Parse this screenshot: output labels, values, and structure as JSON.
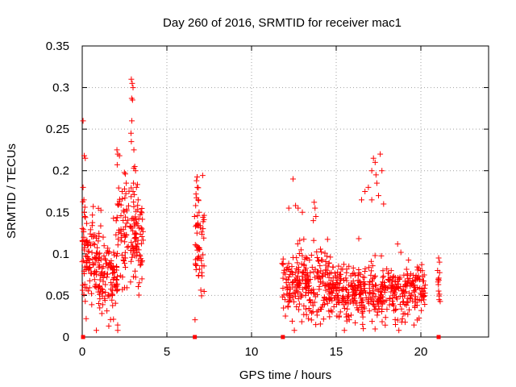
{
  "chart_data": {
    "type": "scatter",
    "title": "Day 260 of 2016, SRMTID for receiver mac1",
    "xlabel": "GPS time / hours",
    "ylabel": "SRMTID / TECUs",
    "xlim": [
      0,
      24
    ],
    "ylim": [
      0,
      0.35
    ],
    "xticks": [
      0,
      5,
      10,
      15,
      20
    ],
    "xtick_labels": [
      "0",
      "5",
      "10",
      "15",
      "20"
    ],
    "yticks": [
      0,
      0.05,
      0.1,
      0.15,
      0.2,
      0.25,
      0.3,
      0.35
    ],
    "ytick_labels": [
      "0",
      "0.05",
      "0.1",
      "0.15",
      "0.2",
      "0.25",
      "0.3",
      "0.35"
    ],
    "grid": true,
    "marker": "+",
    "series_color": "#ff0000",
    "zero_markers_x": [
      0.05,
      6.65,
      11.85,
      21.05
    ],
    "clusters": [
      {
        "x_range": [
          0.0,
          1.0
        ],
        "y_center": 0.095,
        "y_spread": 0.028,
        "count": 110
      },
      {
        "x_range": [
          1.0,
          2.1
        ],
        "y_center": 0.075,
        "y_spread": 0.025,
        "count": 110
      },
      {
        "x_range": [
          2.0,
          3.6
        ],
        "y_center": 0.125,
        "y_spread": 0.03,
        "count": 150
      },
      {
        "x_range": [
          6.6,
          7.2
        ],
        "y_center": 0.11,
        "y_spread": 0.03,
        "count": 55
      },
      {
        "x_range": [
          11.8,
          14.5
        ],
        "y_center": 0.065,
        "y_spread": 0.022,
        "count": 230
      },
      {
        "x_range": [
          14.5,
          17.5
        ],
        "y_center": 0.055,
        "y_spread": 0.018,
        "count": 260
      },
      {
        "x_range": [
          17.5,
          20.3
        ],
        "y_center": 0.055,
        "y_spread": 0.017,
        "count": 220
      },
      {
        "x_range": [
          20.95,
          21.15
        ],
        "y_center": 0.07,
        "y_spread": 0.013,
        "count": 12
      }
    ],
    "points": [
      {
        "x": 0.05,
        "y": 0.26
      },
      {
        "x": 0.12,
        "y": 0.218
      },
      {
        "x": 0.18,
        "y": 0.215
      },
      {
        "x": 0.05,
        "y": 0.18
      },
      {
        "x": 0.1,
        "y": 0.165
      },
      {
        "x": 0.15,
        "y": 0.145
      },
      {
        "x": 0.12,
        "y": 0.15
      },
      {
        "x": 2.05,
        "y": 0.225
      },
      {
        "x": 2.1,
        "y": 0.22
      },
      {
        "x": 2.2,
        "y": 0.218
      },
      {
        "x": 2.5,
        "y": 0.178
      },
      {
        "x": 2.6,
        "y": 0.185
      },
      {
        "x": 2.9,
        "y": 0.31
      },
      {
        "x": 2.95,
        "y": 0.305
      },
      {
        "x": 3.0,
        "y": 0.3
      },
      {
        "x": 2.92,
        "y": 0.287
      },
      {
        "x": 2.97,
        "y": 0.285
      },
      {
        "x": 2.93,
        "y": 0.26
      },
      {
        "x": 2.88,
        "y": 0.245
      },
      {
        "x": 2.9,
        "y": 0.235
      },
      {
        "x": 3.05,
        "y": 0.225
      },
      {
        "x": 3.1,
        "y": 0.205
      },
      {
        "x": 3.15,
        "y": 0.2
      },
      {
        "x": 3.0,
        "y": 0.175
      },
      {
        "x": 3.2,
        "y": 0.18
      },
      {
        "x": 3.3,
        "y": 0.165
      },
      {
        "x": 6.75,
        "y": 0.188
      },
      {
        "x": 6.8,
        "y": 0.18
      },
      {
        "x": 6.72,
        "y": 0.172
      },
      {
        "x": 6.85,
        "y": 0.165
      },
      {
        "x": 6.7,
        "y": 0.158
      },
      {
        "x": 6.9,
        "y": 0.15
      },
      {
        "x": 12.45,
        "y": 0.19
      },
      {
        "x": 12.6,
        "y": 0.158
      },
      {
        "x": 12.75,
        "y": 0.155
      },
      {
        "x": 12.2,
        "y": 0.155
      },
      {
        "x": 13.0,
        "y": 0.15
      },
      {
        "x": 13.7,
        "y": 0.162
      },
      {
        "x": 13.75,
        "y": 0.155
      },
      {
        "x": 13.8,
        "y": 0.145
      },
      {
        "x": 13.65,
        "y": 0.14
      },
      {
        "x": 16.5,
        "y": 0.165
      },
      {
        "x": 16.7,
        "y": 0.175
      },
      {
        "x": 16.9,
        "y": 0.18
      },
      {
        "x": 17.1,
        "y": 0.2
      },
      {
        "x": 17.2,
        "y": 0.215
      },
      {
        "x": 17.3,
        "y": 0.21
      },
      {
        "x": 17.35,
        "y": 0.195
      },
      {
        "x": 17.4,
        "y": 0.185
      },
      {
        "x": 17.5,
        "y": 0.17
      },
      {
        "x": 17.6,
        "y": 0.22
      },
      {
        "x": 17.7,
        "y": 0.2
      },
      {
        "x": 17.8,
        "y": 0.16
      },
      {
        "x": 17.1,
        "y": 0.165
      },
      {
        "x": 16.6,
        "y": 0.01
      },
      {
        "x": 18.7,
        "y": 0.008
      },
      {
        "x": 18.5,
        "y": 0.015
      },
      {
        "x": 21.05,
        "y": 0.095
      },
      {
        "x": 21.1,
        "y": 0.09
      },
      {
        "x": 21.08,
        "y": 0.045
      }
    ]
  }
}
